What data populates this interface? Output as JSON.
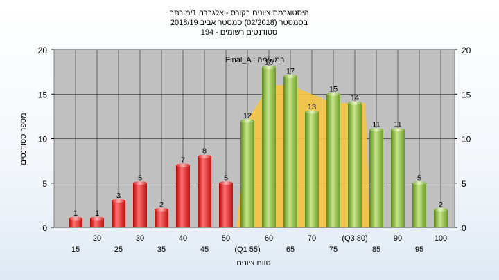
{
  "chart_data": {
    "type": "bar",
    "title_lines": [
      "היסטוגרמת ציונים בקורס - אלגברה 1/מורתב",
      "בסמסטר  (02/2018)  סמסטר אביב 2018/19",
      "סטודנטים רשומים - 194"
    ],
    "xlabel": "טווח ציונים",
    "ylabel": "מספר סטודנטים",
    "ylim": [
      0,
      20
    ],
    "yticks": [
      0,
      5,
      10,
      15,
      20
    ],
    "y_axis_right": true,
    "grid": true,
    "bins": [
      15,
      20,
      25,
      30,
      35,
      40,
      45,
      50,
      55,
      60,
      65,
      70,
      75,
      80,
      85,
      90,
      95,
      100
    ],
    "bin_labels": [
      "15",
      "20",
      "25",
      "30",
      "35",
      "40",
      "45",
      "50",
      "(Q1 55)",
      "60",
      "65",
      "70",
      "75",
      "(Q3 80)",
      "85",
      "90",
      "95",
      "100"
    ],
    "values": [
      1,
      1,
      3,
      5,
      2,
      7,
      8,
      5,
      12,
      18,
      17,
      13,
      15,
      14,
      11,
      11,
      5,
      2
    ],
    "pass_threshold": 55,
    "fail_color": "#e02020",
    "pass_color": "#8fbf3f",
    "annotation": "Final_A : במשימה",
    "interquartile_band": {
      "x": [
        55,
        60,
        65,
        70,
        75,
        80
      ],
      "values": [
        12,
        16,
        16,
        15,
        14,
        14
      ],
      "color": "#f5c542"
    }
  }
}
